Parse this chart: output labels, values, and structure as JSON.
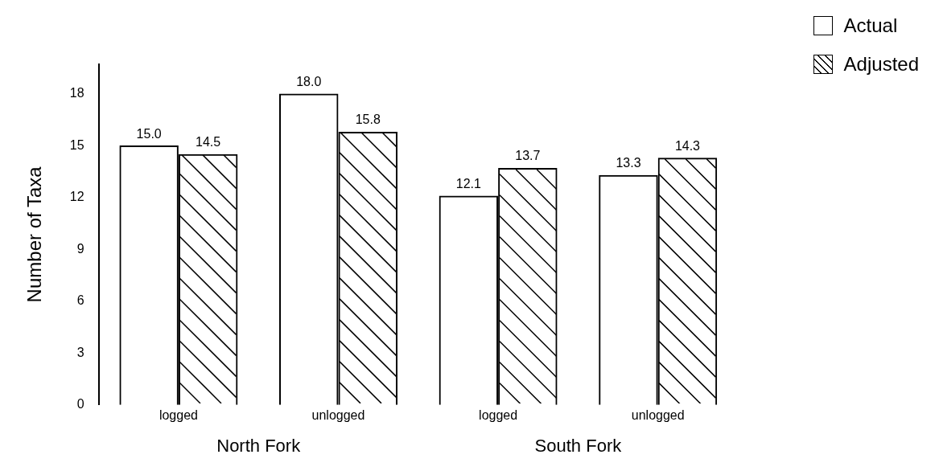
{
  "chart_data": {
    "type": "bar",
    "ylabel": "Number of Taxa",
    "categories": [
      "logged",
      "unlogged",
      "logged",
      "unlogged"
    ],
    "series": [
      {
        "name": "Actual",
        "color": "#000000",
        "values": [
          15.0,
          18.0,
          12.1,
          13.3
        ],
        "value_labels": [
          "15.0",
          "18.0",
          "12.1",
          "13.3"
        ]
      },
      {
        "name": "Adjusted",
        "color": "#000000",
        "values": [
          14.5,
          15.8,
          13.7,
          14.3
        ],
        "value_labels": [
          "14.5",
          "15.8",
          "13.7",
          "14.3"
        ]
      }
    ],
    "ylim": [
      0,
      19.7
    ],
    "yticks": [
      0,
      3,
      6,
      9,
      12,
      15,
      18
    ],
    "annotations": [
      "North Fork",
      "South Fork"
    ],
    "grid": false,
    "legend": "top right"
  }
}
